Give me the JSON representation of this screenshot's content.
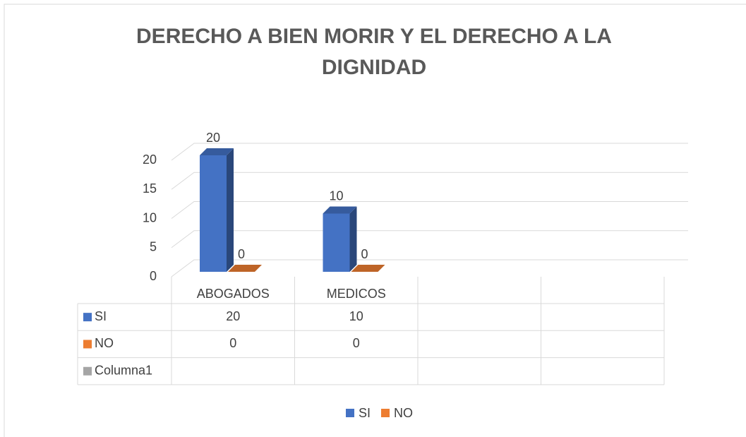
{
  "chart_data": {
    "type": "bar3d",
    "title": "DERECHO A BIEN MORIR Y EL DERECHO A LA DIGNIDAD",
    "categories": [
      "ABOGADOS",
      "MEDICOS",
      null,
      null
    ],
    "series": [
      {
        "name": "SI",
        "color": "#4472c4",
        "values": [
          20,
          10,
          null,
          null
        ]
      },
      {
        "name": "NO",
        "color": "#ed7d31",
        "values": [
          0,
          0,
          null,
          null
        ]
      },
      {
        "name": "Columna1",
        "color": "#a5a5a5",
        "values": [
          null,
          null,
          null,
          null
        ]
      }
    ],
    "legend_series": [
      0,
      1
    ],
    "ylim": [
      0,
      20
    ],
    "yticks": [
      0,
      5,
      10,
      15,
      20
    ],
    "grid": true,
    "data_table": true,
    "legend": "bottom"
  }
}
